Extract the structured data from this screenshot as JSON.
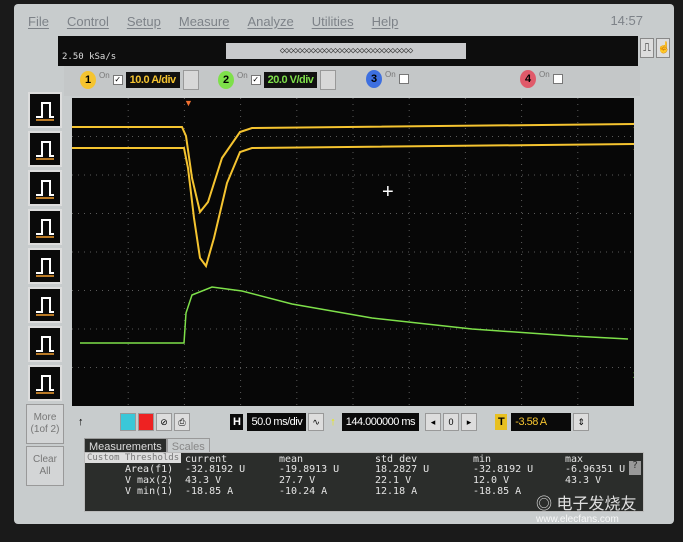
{
  "menu": [
    "File",
    "Control",
    "Setup",
    "Measure",
    "Analyze",
    "Utilities",
    "Help"
  ],
  "clock": "14:57",
  "sample_rate": "2.50 kSa/s",
  "channels": [
    {
      "num": "1",
      "on": "On",
      "checked": true,
      "scale": "10.0 A/div",
      "color": "#f5c430"
    },
    {
      "num": "2",
      "on": "On",
      "checked": true,
      "scale": "20.0 V/div",
      "color": "#7ee04a"
    },
    {
      "num": "3",
      "on": "On",
      "checked": false,
      "color": "#3d6fe0"
    },
    {
      "num": "4",
      "on": "On",
      "checked": false,
      "color": "#e05a6a"
    }
  ],
  "left_buttons": [
    "rise-time-icon",
    "fall-time-icon",
    "positive-width-icon",
    "negative-width-icon",
    "period-icon",
    "frequency-icon",
    "vpp-icon",
    "vmax-icon"
  ],
  "more_label": "More (1of 2)",
  "clear_label": "Clear All",
  "horizontal": {
    "label": "H",
    "scale": "50.0 ms/div",
    "position": "144.000000 ms",
    "ref": "0"
  },
  "trigger": {
    "label": "T",
    "level": "-3.58 A"
  },
  "tabs": [
    "Measurements",
    "Scales"
  ],
  "custom_thresholds": "Custom Thresholds",
  "table": {
    "headers": [
      "current",
      "mean",
      "std dev",
      "min",
      "max"
    ],
    "rows": [
      {
        "name": "Area(f1)",
        "values": [
          "-32.8192 U",
          "-19.8913 U",
          "18.2827 U",
          "-32.8192 U",
          "-6.96351 U"
        ]
      },
      {
        "name": "V max(2)",
        "values": [
          "43.3 V",
          "27.7 V",
          "22.1 V",
          "12.0 V",
          "43.3 V"
        ]
      },
      {
        "name": "V min(1)",
        "values": [
          "-18.85 A",
          "-10.24 A",
          "12.18 A",
          "-18.85 A",
          ""
        ]
      }
    ]
  },
  "watermark": {
    "text": "电子发烧友",
    "url": "www.elecfans.com"
  },
  "colors": {
    "ch1": "#f5c430",
    "ch2": "#7ee04a",
    "grid": "#5a5a5a"
  }
}
